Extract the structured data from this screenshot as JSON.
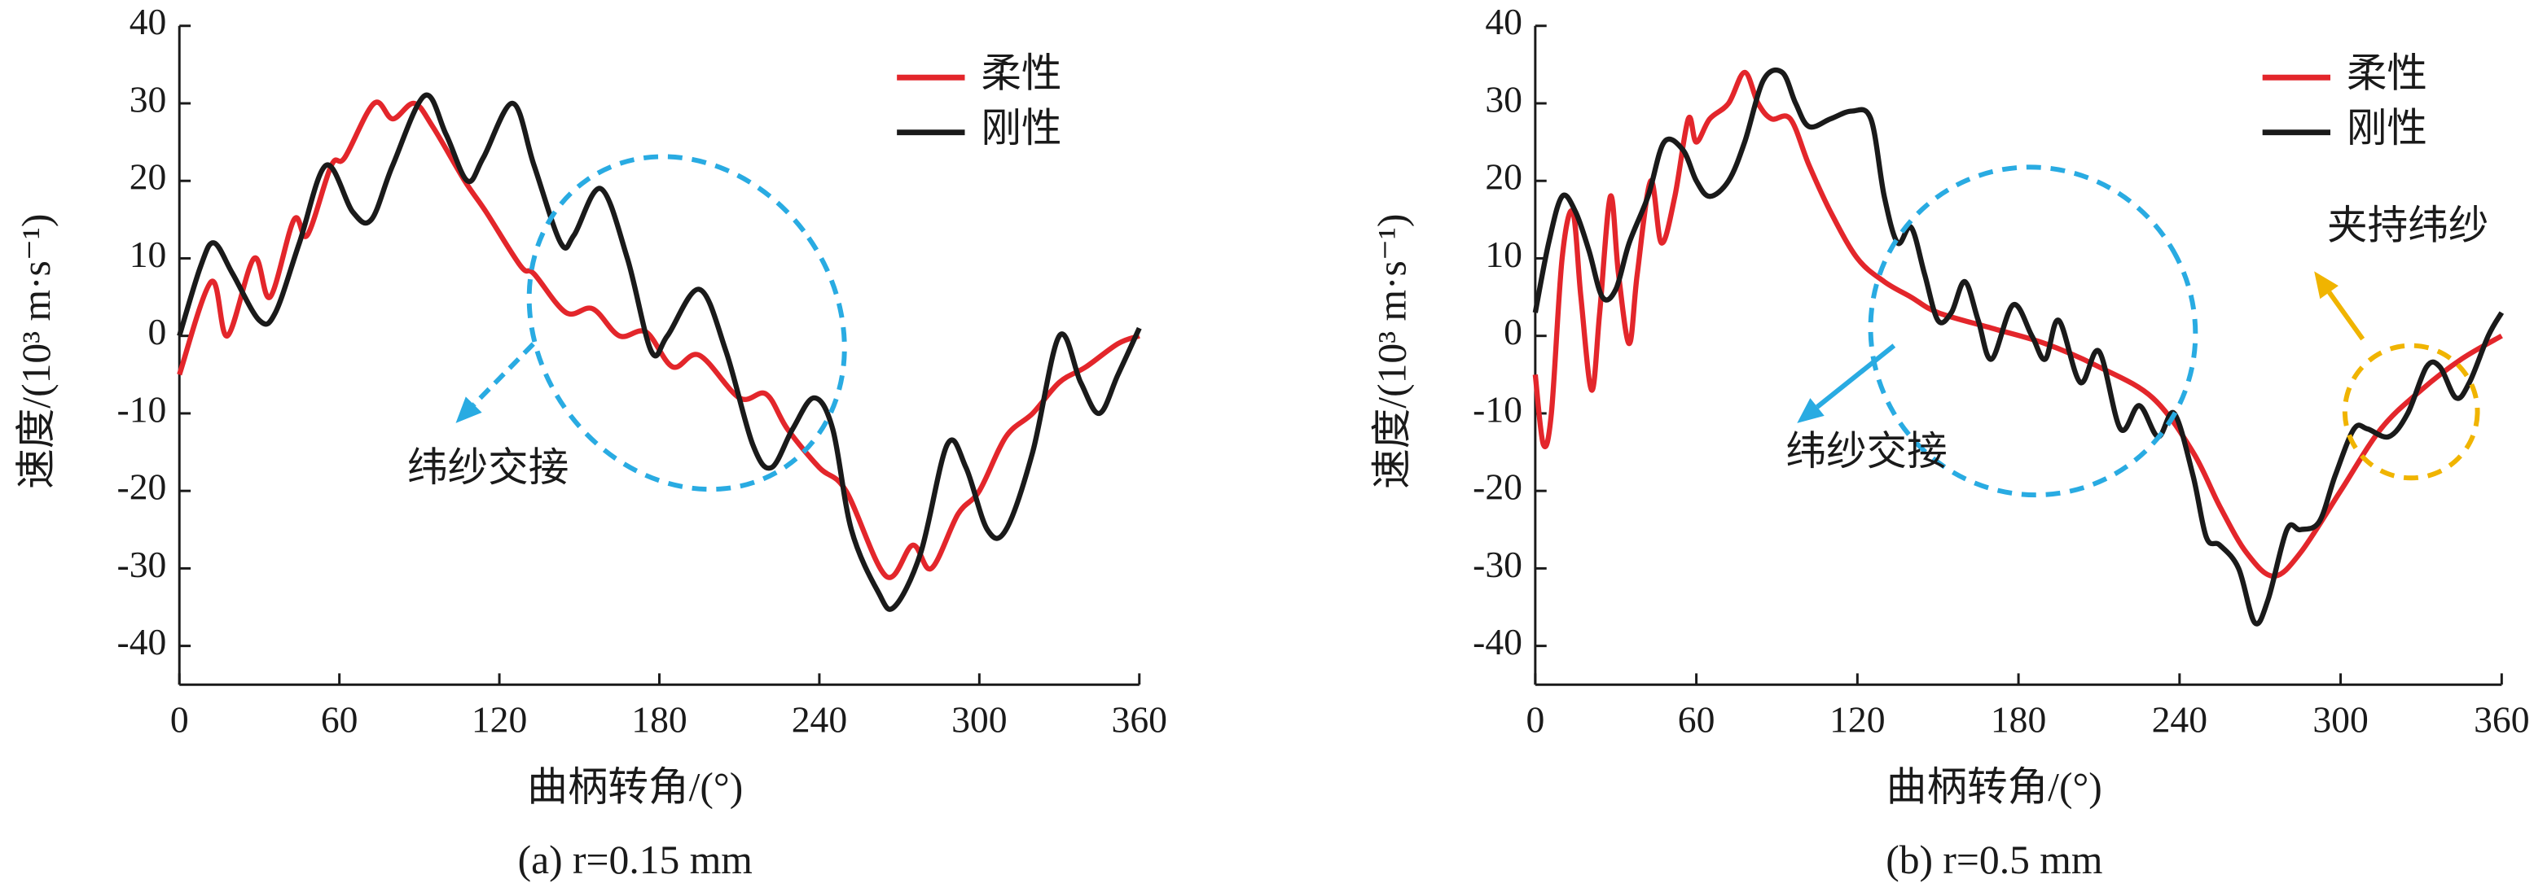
{
  "chart_data": [
    {
      "type": "line",
      "subtitle": "(a) r=0.15 mm",
      "xlabel": "曲柄转角/(°)",
      "ylabel": "速度/(10³ m·s⁻¹)",
      "xlim": [
        0,
        360
      ],
      "ylim": [
        -45,
        40
      ],
      "xticks": [
        0,
        60,
        120,
        180,
        240,
        300,
        360
      ],
      "yticks": [
        -40,
        -30,
        -20,
        -10,
        0,
        10,
        20,
        30,
        40
      ],
      "legend": "upper right",
      "annotations": [
        "纬纱交接"
      ],
      "series": [
        {
          "name": "柔性",
          "color": "#e3262b",
          "x": [
            0,
            12,
            18,
            28,
            34,
            43,
            48,
            57,
            62,
            73,
            80,
            88,
            95,
            107,
            115,
            128,
            133,
            145,
            155,
            165,
            175,
            185,
            195,
            210,
            220,
            228,
            240,
            250,
            265,
            275,
            282,
            292,
            300,
            310,
            320,
            330,
            340,
            352,
            360
          ],
          "values": [
            -5,
            7,
            0,
            10,
            5,
            15,
            13,
            22,
            23,
            30,
            28,
            30,
            27,
            20,
            16,
            9,
            8,
            3,
            3.5,
            0,
            0.5,
            -4,
            -2.5,
            -8,
            -7.5,
            -12,
            -17,
            -20,
            -31,
            -27,
            -30,
            -23,
            -20,
            -13,
            -10,
            -6,
            -4,
            -1,
            0
          ]
        },
        {
          "name": "刚性",
          "color": "#1a1a1a",
          "x": [
            0,
            8,
            13,
            20,
            30,
            36,
            45,
            55,
            65,
            72,
            80,
            92,
            100,
            108,
            114,
            125,
            133,
            143,
            148,
            158,
            168,
            177,
            183,
            195,
            205,
            215,
            222,
            230,
            238,
            245,
            252,
            262,
            268,
            278,
            288,
            295,
            303,
            310,
            320,
            330,
            338,
            345,
            352,
            360
          ],
          "values": [
            0,
            9,
            12,
            8,
            2,
            3,
            12,
            22,
            16,
            15,
            22,
            31,
            26,
            20,
            23,
            30,
            22,
            12,
            13,
            19,
            10,
            -2,
            0,
            6,
            -2,
            -14,
            -17,
            -12,
            -8,
            -12,
            -25,
            -33,
            -35,
            -28,
            -14,
            -17,
            -25,
            -25,
            -15,
            0,
            -6,
            -10,
            -5,
            1
          ]
        }
      ]
    },
    {
      "type": "line",
      "subtitle": "(b) r=0.5 mm",
      "xlabel": "曲柄转角/(°)",
      "ylabel": "速度/(10³ m·s⁻¹)",
      "xlim": [
        0,
        360
      ],
      "ylim": [
        -45,
        40
      ],
      "xticks": [
        0,
        60,
        120,
        180,
        240,
        300,
        360
      ],
      "yticks": [
        -40,
        -30,
        -20,
        -10,
        0,
        10,
        20,
        30,
        40
      ],
      "legend": "upper right",
      "annotations": [
        "纬纱交接",
        "夹持纬纱"
      ],
      "series": [
        {
          "name": "柔性",
          "color": "#e3262b",
          "x": [
            0,
            3,
            6,
            10,
            14,
            17,
            21,
            24,
            28,
            31,
            35,
            38,
            43,
            47,
            52,
            57,
            60,
            65,
            72,
            78,
            83,
            88,
            95,
            102,
            110,
            120,
            130,
            140,
            150,
            170,
            190,
            210,
            230,
            245,
            255,
            265,
            275,
            285,
            300,
            315,
            330,
            345,
            360
          ],
          "values": [
            -5,
            -14,
            -10,
            10,
            16,
            5,
            -7,
            3,
            18,
            8,
            -1,
            8,
            20,
            12,
            18,
            28,
            25,
            28,
            30,
            34,
            30,
            28,
            28,
            22,
            16,
            10,
            7,
            5,
            3,
            1,
            -1,
            -4,
            -8,
            -15,
            -22,
            -28,
            -31,
            -28,
            -20,
            -12,
            -7,
            -3,
            0
          ]
        },
        {
          "name": "刚性",
          "color": "#1a1a1a",
          "x": [
            0,
            5,
            10,
            15,
            20,
            25,
            30,
            35,
            42,
            48,
            55,
            60,
            65,
            72,
            78,
            85,
            92,
            97,
            102,
            110,
            118,
            125,
            130,
            135,
            140,
            145,
            150,
            155,
            160,
            165,
            170,
            178,
            185,
            190,
            195,
            203,
            210,
            218,
            225,
            232,
            238,
            245,
            250,
            255,
            262,
            268,
            273,
            280,
            285,
            292,
            298,
            305,
            310,
            318,
            325,
            332,
            337,
            343,
            348,
            355,
            360
          ],
          "values": [
            3,
            12,
            18,
            16,
            11,
            5,
            6,
            12,
            18,
            25,
            24,
            20,
            18,
            20,
            25,
            33,
            34,
            30,
            27,
            28,
            29,
            28,
            18,
            12,
            14,
            8,
            2,
            3,
            7,
            2,
            -3,
            4,
            0,
            -3,
            2,
            -6,
            -2,
            -12,
            -9,
            -13,
            -10,
            -18,
            -26,
            -27,
            -30,
            -37,
            -34,
            -25,
            -25,
            -24,
            -18,
            -12,
            -12,
            -13,
            -10,
            -4,
            -4,
            -8,
            -6,
            0,
            3
          ]
        }
      ]
    }
  ]
}
